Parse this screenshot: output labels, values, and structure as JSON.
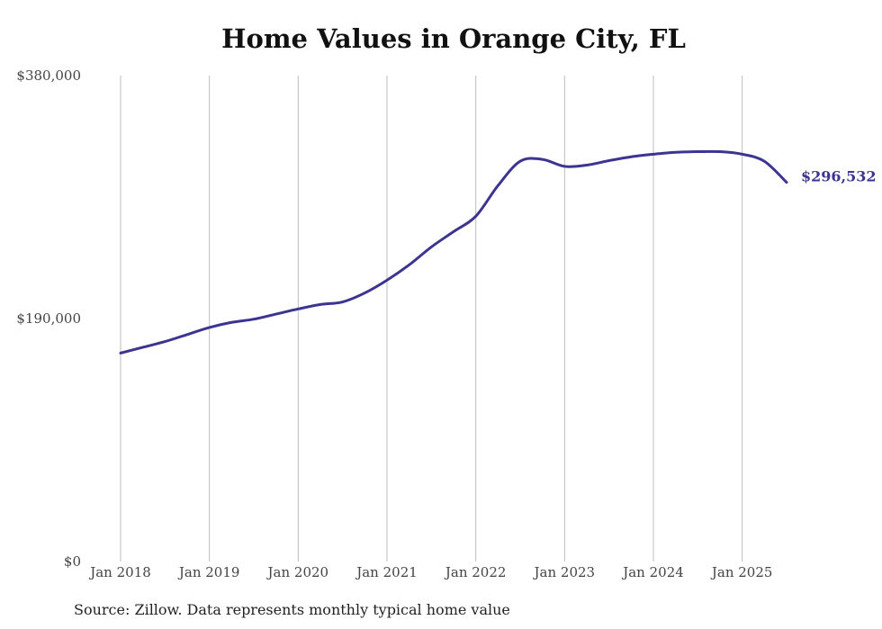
{
  "chart_data": {
    "type": "line",
    "title": "Home Values in Orange City, FL",
    "source": "Source: Zillow. Data represents monthly typical home value",
    "xlabel": "",
    "ylabel": "",
    "ylim": [
      0,
      380000
    ],
    "y_ticks": [
      0,
      190000,
      380000
    ],
    "y_tick_labels": [
      "$0",
      "$190,000",
      "$380,000"
    ],
    "x_ticks": [
      "2018-01",
      "2019-01",
      "2020-01",
      "2021-01",
      "2022-01",
      "2023-01",
      "2024-01",
      "2025-01"
    ],
    "x_tick_labels": [
      "Jan 2018",
      "Jan 2019",
      "Jan 2020",
      "Jan 2021",
      "Jan 2022",
      "Jan 2023",
      "Jan 2024",
      "Jan 2025"
    ],
    "grid": "vertical",
    "line_color": "#3b3591",
    "end_label": "$296,532",
    "series": [
      {
        "x": [
          "2018-01",
          "2018-04",
          "2018-07",
          "2018-10",
          "2019-01",
          "2019-04",
          "2019-07",
          "2019-10",
          "2020-01",
          "2020-04",
          "2020-07",
          "2020-10",
          "2021-01",
          "2021-04",
          "2021-07",
          "2021-10",
          "2022-01",
          "2022-04",
          "2022-07",
          "2022-10",
          "2023-01",
          "2023-04",
          "2023-07",
          "2023-10",
          "2024-01",
          "2024-04",
          "2024-07",
          "2024-10",
          "2025-01",
          "2025-04",
          "2025-07"
        ],
        "values": [
          163000,
          167500,
          172000,
          177500,
          183000,
          187000,
          189500,
          193500,
          197500,
          201000,
          203000,
          210000,
          220000,
          232000,
          246000,
          258000,
          270000,
          294000,
          313000,
          314500,
          309000,
          310000,
          313500,
          316500,
          318500,
          320000,
          320500,
          320500,
          318500,
          313000,
          296532
        ]
      }
    ]
  }
}
